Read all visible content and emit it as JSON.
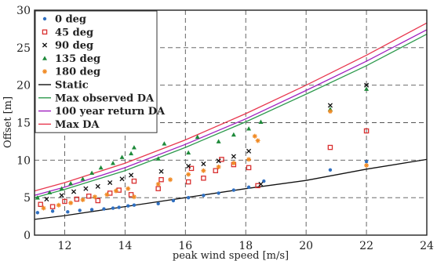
{
  "chart_data": {
    "type": "scatter",
    "title": "",
    "xlabel": "peak wind speed [m/s]",
    "ylabel": "Offset [m]",
    "xlim": [
      11,
      24
    ],
    "ylim": [
      0,
      30
    ],
    "xticks": [
      12,
      14,
      16,
      18,
      20,
      22,
      24
    ],
    "yticks": [
      0,
      5,
      10,
      15,
      20,
      25,
      30
    ],
    "grid": "dashed",
    "legend_position": "top-left",
    "scatter_series": [
      {
        "name": "0 deg",
        "marker": "dot",
        "color": "#2f6fc0",
        "points": [
          [
            11.1,
            3.0
          ],
          [
            11.6,
            3.2
          ],
          [
            12.1,
            3.1
          ],
          [
            12.5,
            3.3
          ],
          [
            12.9,
            3.4
          ],
          [
            13.3,
            3.5
          ],
          [
            13.6,
            3.6
          ],
          [
            13.8,
            3.7
          ],
          [
            14.1,
            3.9
          ],
          [
            14.3,
            4.0
          ],
          [
            15.1,
            4.2
          ],
          [
            15.6,
            4.6
          ],
          [
            16.1,
            5.0
          ],
          [
            16.6,
            5.3
          ],
          [
            17.1,
            5.6
          ],
          [
            17.6,
            6.0
          ],
          [
            18.1,
            6.4
          ],
          [
            18.6,
            7.2
          ],
          [
            20.8,
            8.7
          ],
          [
            22.0,
            9.8
          ]
        ]
      },
      {
        "name": "45 deg",
        "marker": "square",
        "color": "#d93030",
        "points": [
          [
            11.2,
            4.1
          ],
          [
            11.6,
            3.8
          ],
          [
            12.0,
            4.5
          ],
          [
            12.4,
            4.8
          ],
          [
            12.8,
            5.2
          ],
          [
            13.1,
            4.6
          ],
          [
            13.5,
            5.6
          ],
          [
            13.8,
            6.0
          ],
          [
            14.2,
            5.4
          ],
          [
            14.3,
            7.2
          ],
          [
            15.1,
            6.2
          ],
          [
            15.2,
            7.4
          ],
          [
            16.1,
            7.1
          ],
          [
            16.2,
            8.9
          ],
          [
            16.6,
            7.6
          ],
          [
            17.0,
            8.6
          ],
          [
            17.2,
            10.1
          ],
          [
            17.6,
            9.4
          ],
          [
            18.1,
            9.0
          ],
          [
            18.4,
            6.6
          ],
          [
            20.8,
            11.7
          ],
          [
            22.0,
            13.9
          ]
        ]
      },
      {
        "name": "90 deg",
        "marker": "x",
        "color": "#111111",
        "points": [
          [
            11.4,
            4.8
          ],
          [
            11.9,
            5.3
          ],
          [
            12.3,
            5.8
          ],
          [
            12.7,
            6.2
          ],
          [
            13.1,
            6.5
          ],
          [
            13.5,
            7.0
          ],
          [
            13.9,
            7.5
          ],
          [
            14.2,
            8.0
          ],
          [
            15.2,
            8.5
          ],
          [
            16.1,
            9.2
          ],
          [
            16.6,
            9.5
          ],
          [
            17.1,
            9.9
          ],
          [
            17.6,
            10.5
          ],
          [
            18.1,
            11.2
          ],
          [
            18.5,
            6.8
          ],
          [
            20.8,
            17.3
          ],
          [
            22.0,
            20.0
          ]
        ]
      },
      {
        "name": "135 deg",
        "marker": "triangle",
        "color": "#1e8a3a",
        "points": [
          [
            11.1,
            5.0
          ],
          [
            11.5,
            5.7
          ],
          [
            11.9,
            6.2
          ],
          [
            12.2,
            6.9
          ],
          [
            12.6,
            7.5
          ],
          [
            12.9,
            8.3
          ],
          [
            13.2,
            9.0
          ],
          [
            13.6,
            9.6
          ],
          [
            13.9,
            10.4
          ],
          [
            14.2,
            10.9
          ],
          [
            14.3,
            11.7
          ],
          [
            15.1,
            10.2
          ],
          [
            15.3,
            12.2
          ],
          [
            16.1,
            11.0
          ],
          [
            16.4,
            13.1
          ],
          [
            17.1,
            12.5
          ],
          [
            17.6,
            13.4
          ],
          [
            18.1,
            14.2
          ],
          [
            18.5,
            15.1
          ],
          [
            20.8,
            16.8
          ],
          [
            22.0,
            19.5
          ]
        ]
      },
      {
        "name": "180 deg",
        "marker": "star",
        "color": "#f08a24",
        "points": [
          [
            11.3,
            3.6
          ],
          [
            11.8,
            4.0
          ],
          [
            12.2,
            4.3
          ],
          [
            12.6,
            4.7
          ],
          [
            13.0,
            5.1
          ],
          [
            13.4,
            5.4
          ],
          [
            13.7,
            5.9
          ],
          [
            14.1,
            6.2
          ],
          [
            14.3,
            5.1
          ],
          [
            15.1,
            6.8
          ],
          [
            15.5,
            7.4
          ],
          [
            16.1,
            8.1
          ],
          [
            16.6,
            8.6
          ],
          [
            17.1,
            9.1
          ],
          [
            17.6,
            9.6
          ],
          [
            18.1,
            10.1
          ],
          [
            18.3,
            13.2
          ],
          [
            18.4,
            12.6
          ],
          [
            20.8,
            16.5
          ],
          [
            22.0,
            9.3
          ]
        ]
      }
    ],
    "line_series": [
      {
        "name": "Static",
        "color": "#111111",
        "x": [
          11,
          12,
          14,
          16,
          18,
          20,
          22,
          24
        ],
        "y": [
          2.1,
          2.6,
          3.8,
          5.0,
          6.2,
          7.3,
          8.8,
          10.1
        ]
      },
      {
        "name": "Max observed DA",
        "color": "#2e9a4e",
        "x": [
          11,
          12,
          14,
          16,
          18,
          20,
          22,
          24
        ],
        "y": [
          5.0,
          6.1,
          8.6,
          11.7,
          15.1,
          18.8,
          22.6,
          26.8
        ]
      },
      {
        "name": "100 year return DA",
        "color": "#a020c0",
        "x": [
          11,
          12,
          14,
          16,
          18,
          20,
          22,
          24
        ],
        "y": [
          5.3,
          6.4,
          9.0,
          12.1,
          15.5,
          19.3,
          23.2,
          27.4
        ]
      },
      {
        "name": "Max DA",
        "color": "#e8384f",
        "x": [
          11,
          12,
          14,
          16,
          18,
          20,
          22,
          24
        ],
        "y": [
          5.9,
          7.0,
          9.6,
          12.7,
          16.2,
          20.0,
          24.0,
          28.3
        ]
      }
    ]
  }
}
